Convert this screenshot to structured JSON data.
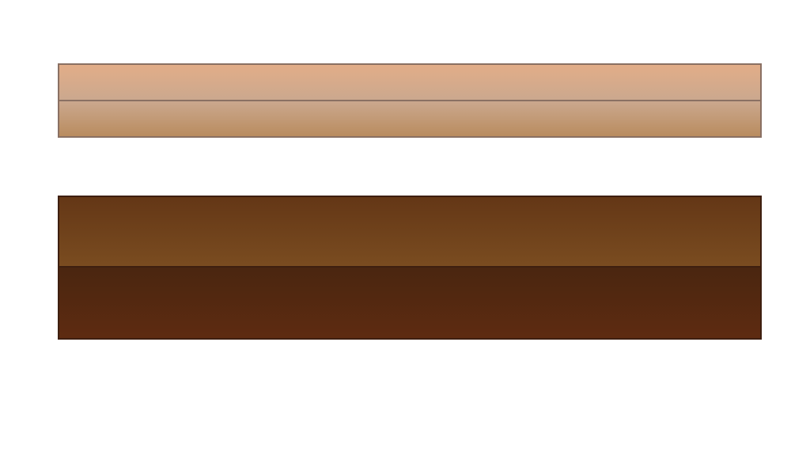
{
  "colors": {
    "background": "#ffffff",
    "light_bar": {
      "border": "#8a7063",
      "top_band": [
        "#e2ad88",
        "#cba88e"
      ],
      "bottom_band": [
        "#cba88e",
        "#b98c5f"
      ]
    },
    "dark_bar": {
      "border": "#3e1f10",
      "top_band": [
        "#643716",
        "#7a4c20"
      ],
      "bottom_band": [
        "#4a2610",
        "#5e2b11"
      ]
    }
  }
}
